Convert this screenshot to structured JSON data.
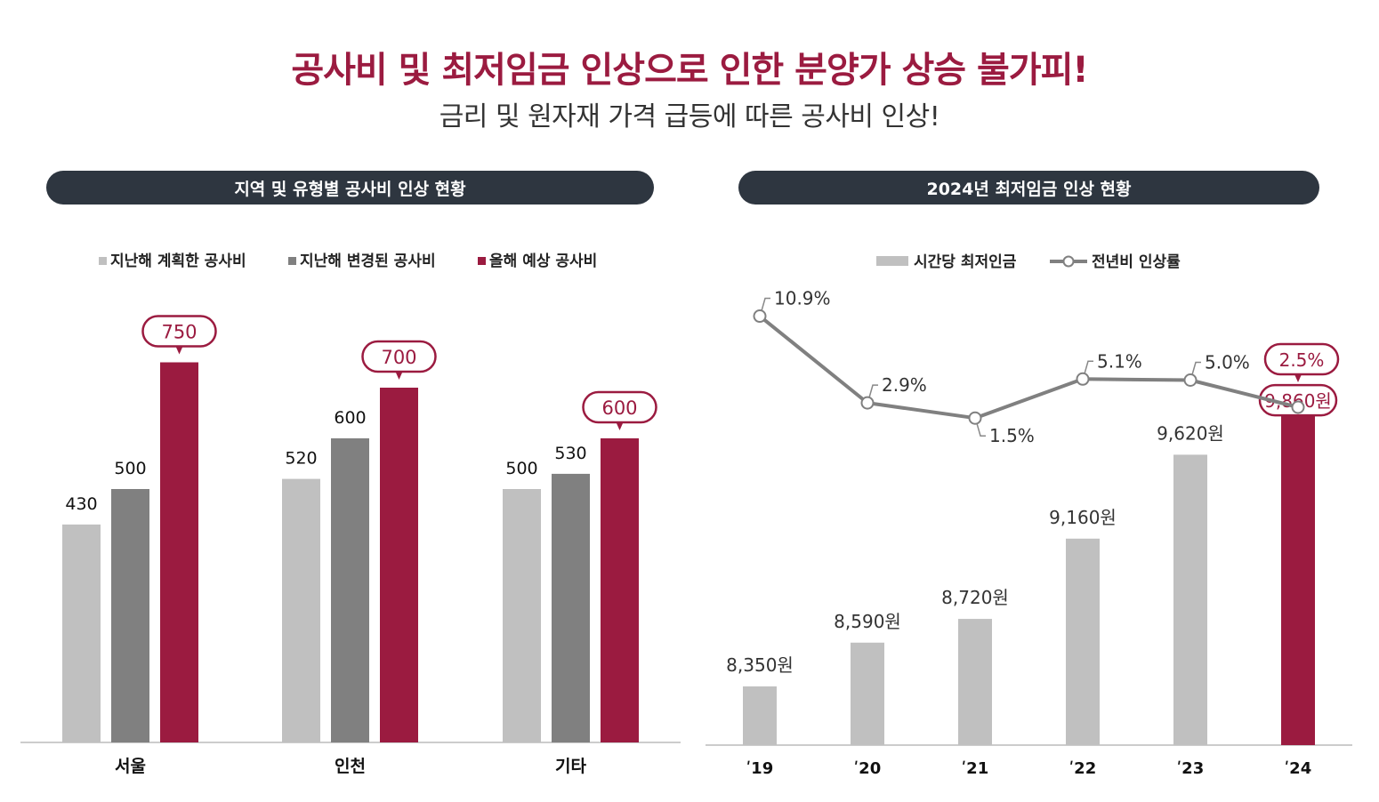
{
  "header": {
    "title": "공사비 및 최저임금 인상으로 인한 분양가 상승 불가피!",
    "subtitle": "금리 및 원자재 가격 급등에 따른 공사비 인상!"
  },
  "colors": {
    "accent": "#9b1b40",
    "light_gray": "#c0c0c0",
    "dark_gray": "#808080",
    "pill_bg": "#2e3640",
    "line": "#808080"
  },
  "chart_data": [
    {
      "type": "bar",
      "title": "지역 및 유형별 공사비 인상 현황",
      "categories": [
        "서울",
        "인천",
        "기타"
      ],
      "series": [
        {
          "name": "지난해 계획한 공사비",
          "values": [
            430,
            520,
            500
          ]
        },
        {
          "name": "지난해 변경된 공사비",
          "values": [
            500,
            600,
            530
          ]
        },
        {
          "name": "올해 예상 공사비",
          "values": [
            750,
            700,
            600
          ]
        }
      ],
      "value_labels": [
        [
          "430",
          "520",
          "500"
        ],
        [
          "500",
          "600",
          "530"
        ],
        [
          "750",
          "700",
          "600"
        ]
      ],
      "legend_position": "top",
      "grid": false
    },
    {
      "type": "bar",
      "title": "2024년 최저임금 인상 현황",
      "categories": [
        "ʹ19",
        "ʹ20",
        "ʹ21",
        "ʹ22",
        "ʹ23",
        "ʹ24"
      ],
      "series": [
        {
          "name": "시간당 최저인금",
          "type": "bar",
          "values": [
            8350,
            8590,
            8720,
            9160,
            9620,
            9860
          ],
          "labels": [
            "8,350원",
            "8,590원",
            "8,720원",
            "9,160원",
            "9,620원",
            "9,860원"
          ]
        },
        {
          "name": "전년비 인상률",
          "type": "line",
          "values": [
            10.9,
            2.9,
            1.5,
            5.1,
            5.0,
            2.5
          ],
          "labels": [
            "10.9%",
            "2.9%",
            "1.5%",
            "5.1%",
            "5.0%",
            "2.5%"
          ]
        }
      ],
      "legend_position": "top",
      "grid": false
    }
  ]
}
